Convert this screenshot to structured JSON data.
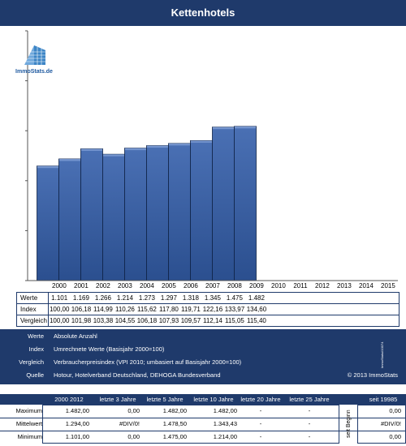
{
  "title": "Kettenhotels",
  "logo": {
    "text": "ImmoStats.de"
  },
  "colors": {
    "header": "#1f3a6b",
    "bar": "#2b4f8f",
    "barTop": "#4a70b4"
  },
  "chart_data": {
    "type": "bar",
    "title": "Kettenhotels",
    "categories": [
      "2000",
      "2001",
      "2002",
      "2003",
      "2004",
      "2005",
      "2006",
      "2007",
      "2008",
      "2009",
      "2010",
      "2011",
      "2012",
      "2013",
      "2014",
      "2015"
    ],
    "values": [
      1101,
      1169,
      1266,
      1214,
      1273,
      1297,
      1318,
      1345,
      1475,
      1482,
      null,
      null,
      null,
      null,
      null,
      null
    ],
    "ylim": [
      0,
      2400
    ],
    "grid": false
  },
  "table": {
    "rows": [
      {
        "label": "Werte",
        "values": [
          "1.101",
          "1.169",
          "1.266",
          "1.214",
          "1.273",
          "1.297",
          "1.318",
          "1.345",
          "1.475",
          "1.482",
          "",
          "",
          "",
          "",
          "",
          ""
        ]
      },
      {
        "label": "Index",
        "values": [
          "100,00",
          "106,18",
          "114,99",
          "110,26",
          "115,62",
          "117,80",
          "119,71",
          "122,16",
          "133,97",
          "134,60",
          "",
          "",
          "",
          "",
          "",
          ""
        ]
      },
      {
        "label": "Vergleich",
        "values": [
          "100,00",
          "101,98",
          "103,38",
          "104,55",
          "106,18",
          "107,93",
          "109,57",
          "112,14",
          "115,05",
          "115,40",
          "",
          "",
          "",
          "",
          "",
          ""
        ]
      }
    ]
  },
  "legend": {
    "items": [
      {
        "key": "Werte",
        "value": "Absolute Anzahl"
      },
      {
        "key": "Index",
        "value": "Umrechnete Werte (Basisjahr 2000=100)"
      },
      {
        "key": "Vergleich",
        "value": "Verbraucherpreisindex (VPI 2010; umbasiert auf Basisjahr 2000=100)"
      },
      {
        "key": "Quelle",
        "value": "Hotour, Hotelverband Deutschland, DEHOGA Bundesverband"
      }
    ],
    "copyright": "© 2013 ImmoStats",
    "side_text": "ImmoStats#10074"
  },
  "stats": {
    "headers": [
      "2000  2012",
      "letzte 3 Jahre",
      "letzte 5 Jahre",
      "letzte 10 Jahre",
      "letzte 20 Jahre",
      "letzte 25 Jahre",
      "seit 19985"
    ],
    "since_label": "seit Beginn",
    "rows": [
      {
        "label": "Maximum",
        "values": [
          "1.482,00",
          "0,00",
          "1.482,00",
          "1.482,00",
          "-",
          "-",
          "0,00"
        ]
      },
      {
        "label": "Mittelwert",
        "values": [
          "1.294,00",
          "#DIV/0!",
          "1.478,50",
          "1.343,43",
          "-",
          "-",
          "#DIV/0!"
        ]
      },
      {
        "label": "Minimum",
        "values": [
          "1.101,00",
          "0,00",
          "1.475,00",
          "1.214,00",
          "-",
          "-",
          "0,00"
        ]
      }
    ]
  }
}
